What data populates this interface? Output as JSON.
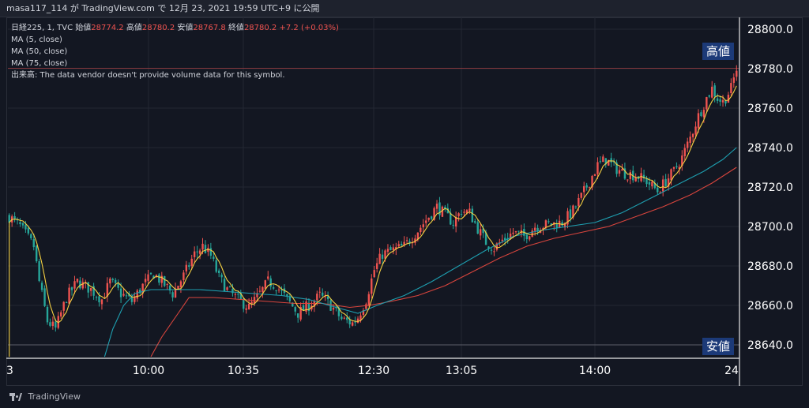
{
  "header": {
    "text": "masa117_114 が TradingView.com で 12月 23, 2021 19:59 UTC+9 に公開"
  },
  "legend": {
    "symbol": "日経225, 1, TVC",
    "open_label": "始値",
    "open_value": "28774.2",
    "high_label": "高値",
    "high_value": "28780.2",
    "low_label": "安値",
    "low_value": "28767.8",
    "close_label": "終値",
    "close_value": "28780.2",
    "change": "+7.2 (+0.03%)",
    "ma_lines": [
      "MA (5, close)",
      "MA (50, close)",
      "MA (75, close)"
    ],
    "volume_note": "出来高: The data vendor doesn't provide volume data for this symbol."
  },
  "badges": {
    "high": "高値",
    "low": "安値"
  },
  "footer": {
    "brand": "TradingView"
  },
  "colors": {
    "up": "#ef5350",
    "down": "#26a69a",
    "ma5": "#f5d142",
    "ma50": "#1e9fb0",
    "ma75": "#d9453d",
    "grid": "#232733",
    "background": "#131722"
  },
  "chart_data": {
    "type": "candlestick",
    "y_ticks": [
      "28800.0",
      "28780.0",
      "28760.0",
      "28740.0",
      "28720.0",
      "28700.0",
      "28680.0",
      "28660.0",
      "28640.0"
    ],
    "y_tick_values": [
      28800,
      28780,
      28760,
      28740,
      28720,
      28700,
      28680,
      28660,
      28640
    ],
    "x_ticks": [
      "3",
      "10:00",
      "10:35",
      "12:30",
      "13:05",
      "14:00",
      "24"
    ],
    "ylim": [
      28634,
      28806
    ],
    "high_line": 28780.2,
    "low_line": 28640,
    "price_path": [
      [
        0,
        28705
      ],
      [
        4,
        28700
      ],
      [
        9,
        28690
      ],
      [
        11,
        28672
      ],
      [
        14,
        28652
      ],
      [
        17,
        28648
      ],
      [
        21,
        28664
      ],
      [
        25,
        28672
      ],
      [
        30,
        28668
      ],
      [
        34,
        28663
      ],
      [
        37,
        28672
      ],
      [
        41,
        28666
      ],
      [
        45,
        28662
      ],
      [
        49,
        28670
      ],
      [
        53,
        28676
      ],
      [
        56,
        28672
      ],
      [
        60,
        28666
      ],
      [
        64,
        28675
      ],
      [
        68,
        28686
      ],
      [
        71,
        28690
      ],
      [
        74,
        28685
      ],
      [
        77,
        28674
      ],
      [
        80,
        28668
      ],
      [
        84,
        28663
      ],
      [
        88,
        28659
      ],
      [
        92,
        28666
      ],
      [
        95,
        28672
      ],
      [
        98,
        28670
      ],
      [
        102,
        28663
      ],
      [
        106,
        28656
      ],
      [
        110,
        28660
      ],
      [
        114,
        28665
      ],
      [
        118,
        28660
      ],
      [
        122,
        28653
      ],
      [
        126,
        28651
      ],
      [
        128,
        28654
      ],
      [
        131,
        28663
      ],
      [
        134,
        28678
      ],
      [
        137,
        28686
      ],
      [
        141,
        28688
      ],
      [
        145,
        28690
      ],
      [
        150,
        28698
      ],
      [
        154,
        28705
      ],
      [
        157,
        28710
      ],
      [
        160,
        28706
      ],
      [
        163,
        28702
      ],
      [
        166,
        28708
      ],
      [
        169,
        28707
      ],
      [
        172,
        28699
      ],
      [
        175,
        28692
      ],
      [
        178,
        28689
      ],
      [
        181,
        28693
      ],
      [
        185,
        28697
      ],
      [
        189,
        28695
      ],
      [
        193,
        28700
      ],
      [
        198,
        28701
      ],
      [
        203,
        28702
      ],
      [
        207,
        28708
      ],
      [
        210,
        28715
      ],
      [
        213,
        28723
      ],
      [
        216,
        28731
      ],
      [
        219,
        28734
      ],
      [
        222,
        28730
      ],
      [
        226,
        28727
      ],
      [
        230,
        28726
      ],
      [
        234,
        28723
      ],
      [
        238,
        28718
      ],
      [
        241,
        28723
      ],
      [
        244,
        28728
      ],
      [
        247,
        28735
      ],
      [
        250,
        28745
      ],
      [
        253,
        28756
      ],
      [
        256,
        28765
      ],
      [
        258,
        28770
      ],
      [
        260,
        28765
      ],
      [
        262,
        28763
      ],
      [
        265,
        28770
      ],
      [
        267,
        28780
      ]
    ],
    "ma50_path": [
      [
        35,
        28634
      ],
      [
        38,
        28648
      ],
      [
        42,
        28660
      ],
      [
        46,
        28666
      ],
      [
        52,
        28668
      ],
      [
        60,
        28668
      ],
      [
        70,
        28668
      ],
      [
        80,
        28667
      ],
      [
        90,
        28666
      ],
      [
        100,
        28665
      ],
      [
        110,
        28663
      ],
      [
        120,
        28659
      ],
      [
        128,
        28656
      ],
      [
        135,
        28660
      ],
      [
        145,
        28665
      ],
      [
        155,
        28672
      ],
      [
        165,
        28680
      ],
      [
        175,
        28688
      ],
      [
        185,
        28695
      ],
      [
        195,
        28698
      ],
      [
        205,
        28700
      ],
      [
        215,
        28702
      ],
      [
        225,
        28707
      ],
      [
        235,
        28714
      ],
      [
        245,
        28721
      ],
      [
        255,
        28728
      ],
      [
        262,
        28734
      ],
      [
        267,
        28740
      ]
    ],
    "ma75_path": [
      [
        52,
        28634
      ],
      [
        56,
        28644
      ],
      [
        62,
        28656
      ],
      [
        66,
        28664
      ],
      [
        75,
        28664
      ],
      [
        85,
        28663
      ],
      [
        95,
        28662
      ],
      [
        105,
        28661
      ],
      [
        115,
        28661
      ],
      [
        125,
        28659
      ],
      [
        132,
        28660
      ],
      [
        140,
        28662
      ],
      [
        150,
        28665
      ],
      [
        160,
        28670
      ],
      [
        170,
        28677
      ],
      [
        180,
        28684
      ],
      [
        190,
        28690
      ],
      [
        200,
        28694
      ],
      [
        210,
        28697
      ],
      [
        220,
        28700
      ],
      [
        230,
        28705
      ],
      [
        240,
        28710
      ],
      [
        250,
        28716
      ],
      [
        258,
        28722
      ],
      [
        267,
        28730
      ]
    ]
  }
}
